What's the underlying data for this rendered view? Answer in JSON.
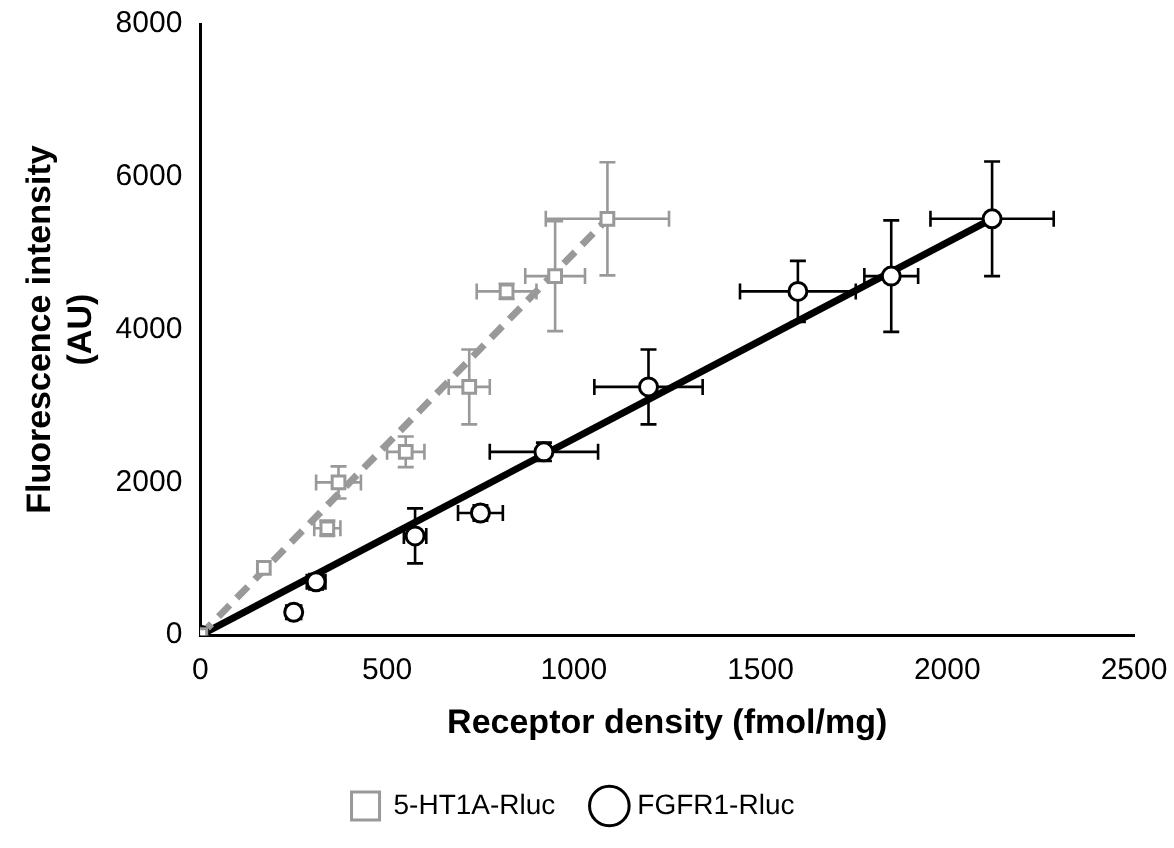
{
  "chart_data": {
    "type": "scatter",
    "xlabel": "Receptor density (fmol/mg)",
    "ylabel": "Fluorescence intensity\n(AU)",
    "xlim": [
      0,
      2500
    ],
    "xticks": [
      0,
      500,
      1000,
      1500,
      2000,
      2500
    ],
    "ylim": [
      0,
      8000
    ],
    "yticks": [
      0,
      2000,
      4000,
      6000,
      8000
    ],
    "grid": false,
    "legend": "bottom",
    "series": [
      {
        "name": "5-HT1A-Rluc",
        "color": "#999999",
        "marker": "square",
        "x": [
          0,
          170,
          340,
          370,
          550,
          720,
          820,
          950,
          1090
        ],
        "values": [
          0,
          880,
          1400,
          2000,
          2400,
          3250,
          4500,
          4700,
          5450
        ],
        "errors": [
          null,
          null,
          100,
          210,
          200,
          490,
          100,
          720,
          740
        ],
        "xerrors": [
          null,
          null,
          35,
          60,
          50,
          55,
          80,
          80,
          165
        ]
      },
      {
        "name": "FGFR1-Rluc",
        "color": "#000000",
        "marker": "circle",
        "x": [
          0,
          250,
          310,
          575,
          750,
          920,
          1200,
          1600,
          1850,
          2120
        ],
        "values": [
          0,
          300,
          700,
          1300,
          1600,
          2400,
          3250,
          4500,
          4700,
          5450
        ],
        "errors": [
          null,
          80,
          100,
          360,
          100,
          120,
          490,
          400,
          730,
          750
        ],
        "xerrors": [
          null,
          20,
          25,
          30,
          60,
          145,
          145,
          155,
          72,
          165
        ]
      },
      {
        "type": "line",
        "color": "#999999",
        "line_style": "dashed",
        "marker": "none",
        "x": [
          0,
          1090
        ],
        "values": [
          0,
          5450
        ]
      },
      {
        "type": "line",
        "color": "#000000",
        "line_style": "solid",
        "marker": "none",
        "x": [
          0,
          2120
        ],
        "values": [
          0,
          5450
        ]
      }
    ]
  }
}
